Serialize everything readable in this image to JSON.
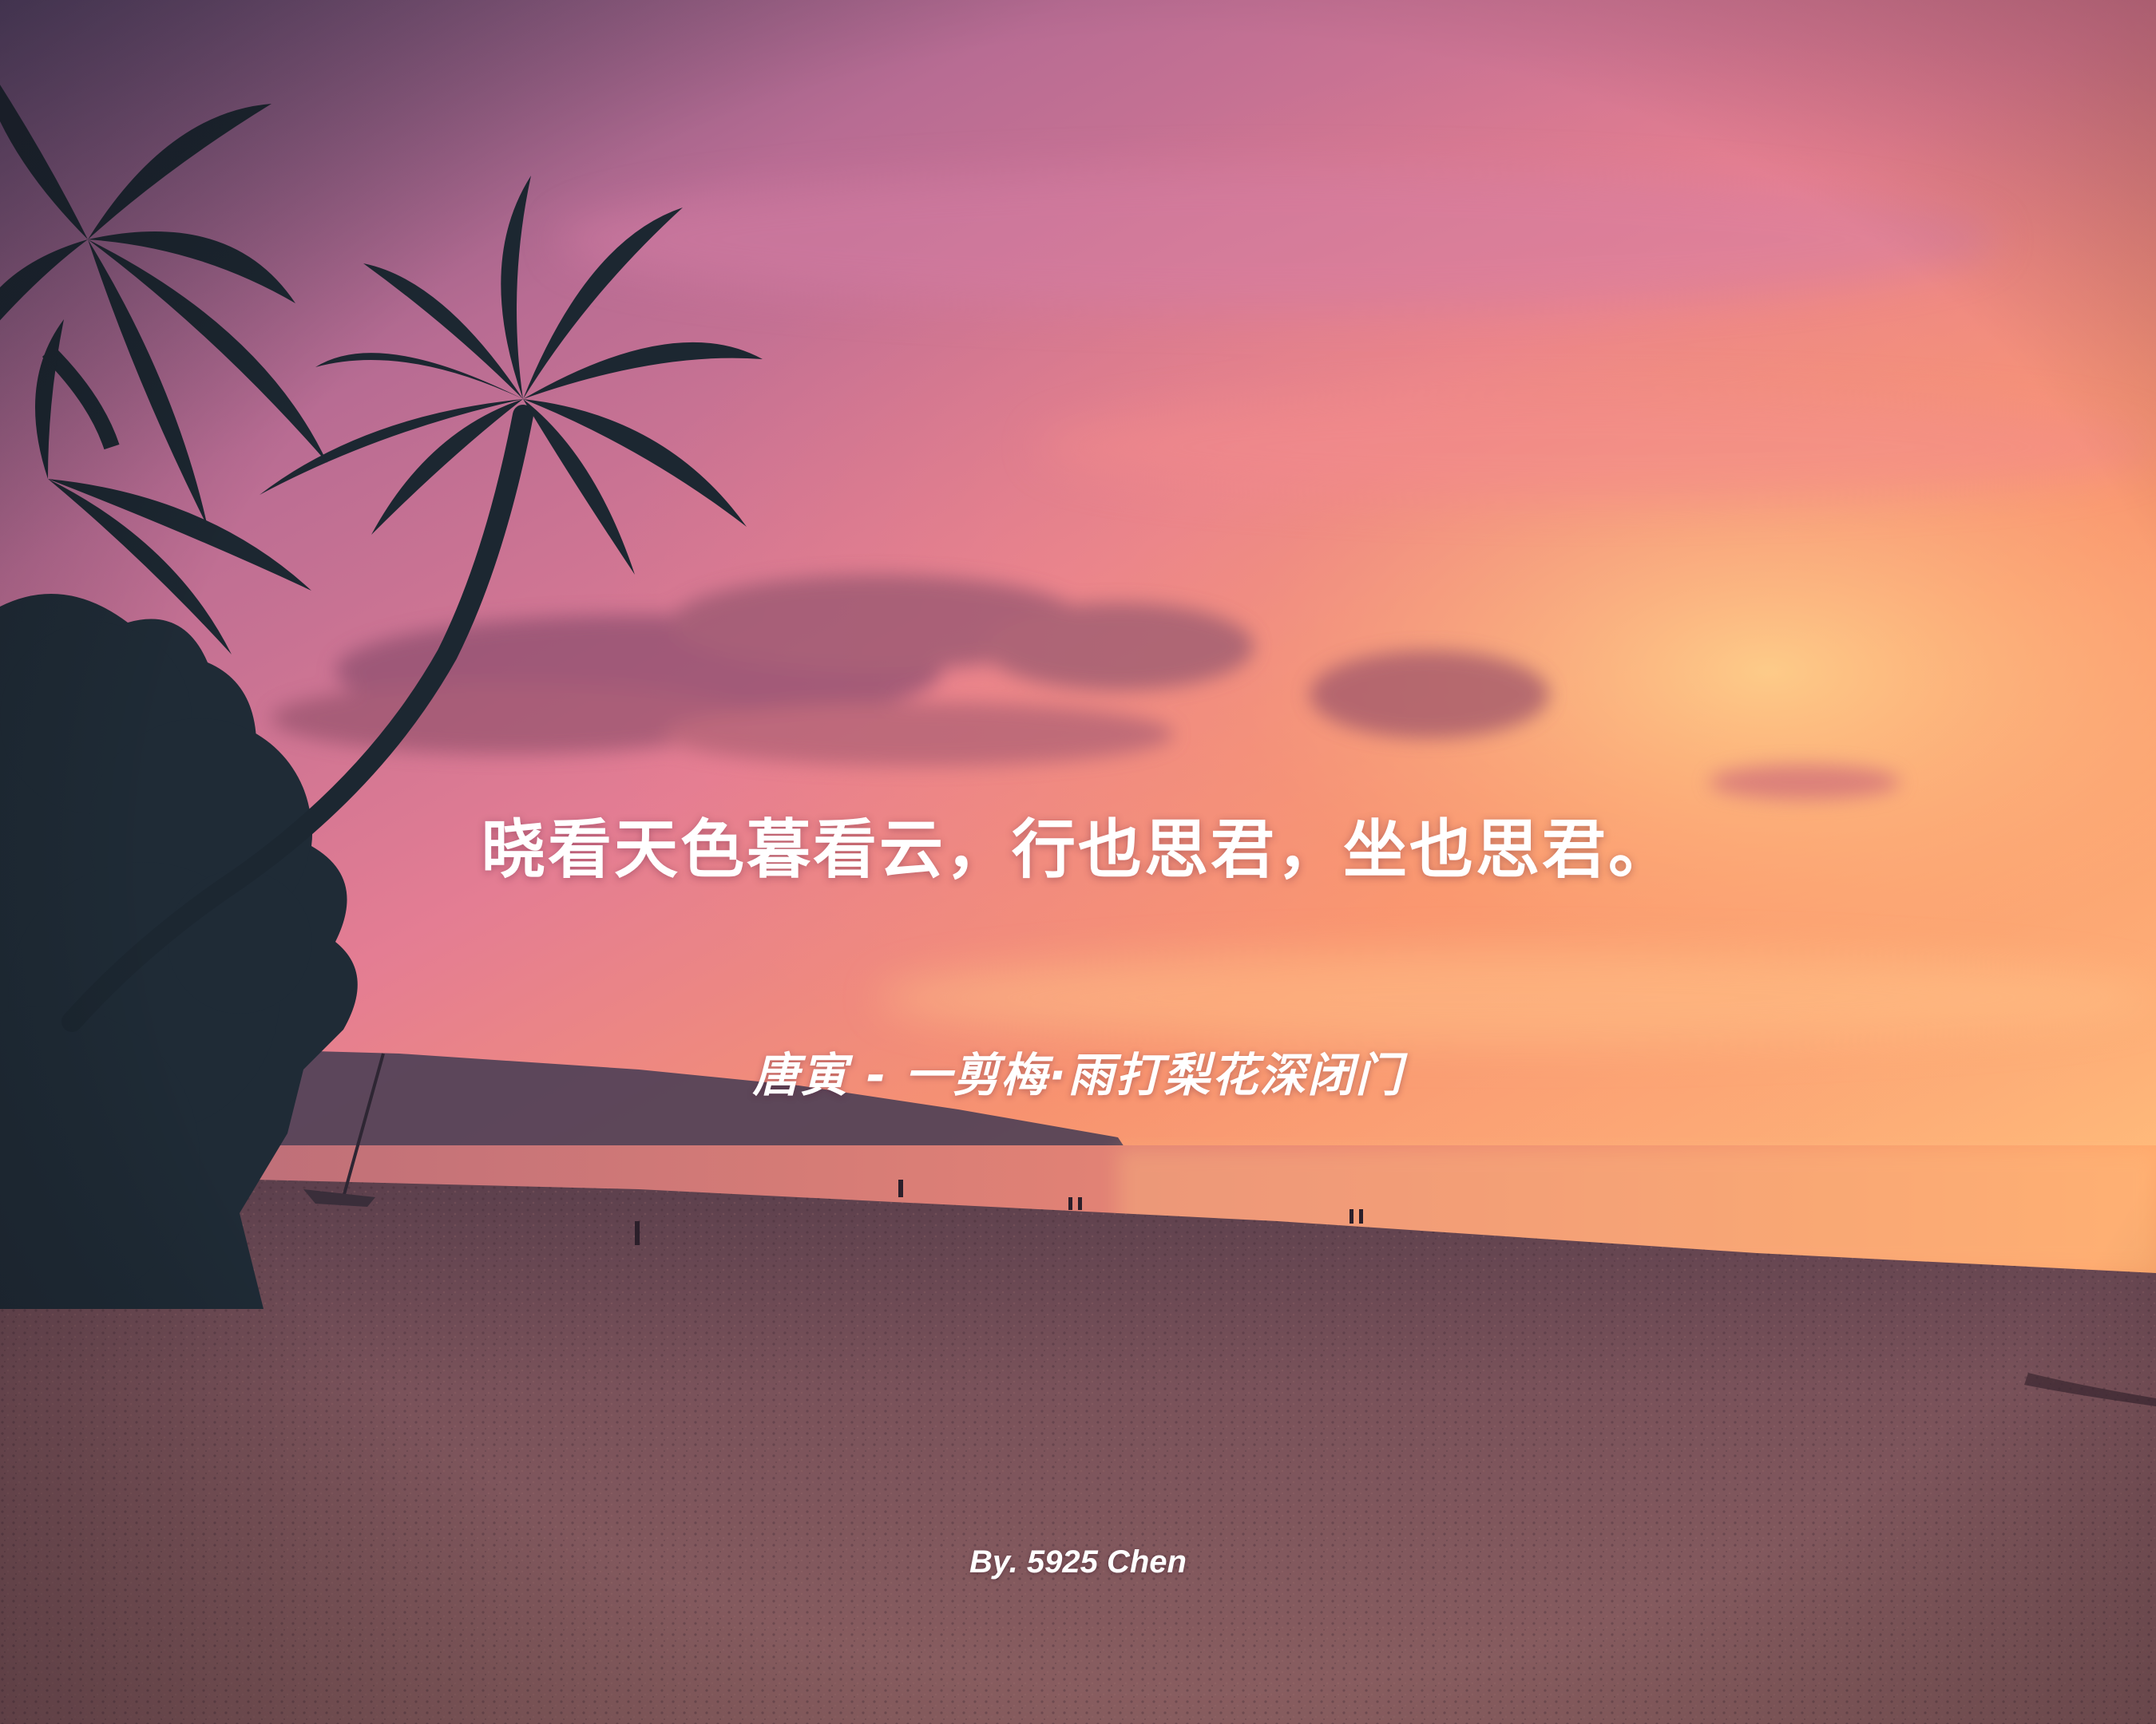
{
  "poem": {
    "line": "晓看天色暮看云，行也思君，坐也思君。",
    "source": "唐寅 - 一剪梅·雨打梨花深闭门",
    "credit": "By. 5925 Chen"
  },
  "background": {
    "scene": "palm-tree-beach-sunset",
    "sky_top_color": "#6e5a7a",
    "sky_mid_color": "#e07a96",
    "horizon_glow_color": "#ffb070",
    "sea_color": "#f08a72",
    "sand_color": "#6e4a52",
    "palm_silhouette_color": "#1e2a35"
  }
}
